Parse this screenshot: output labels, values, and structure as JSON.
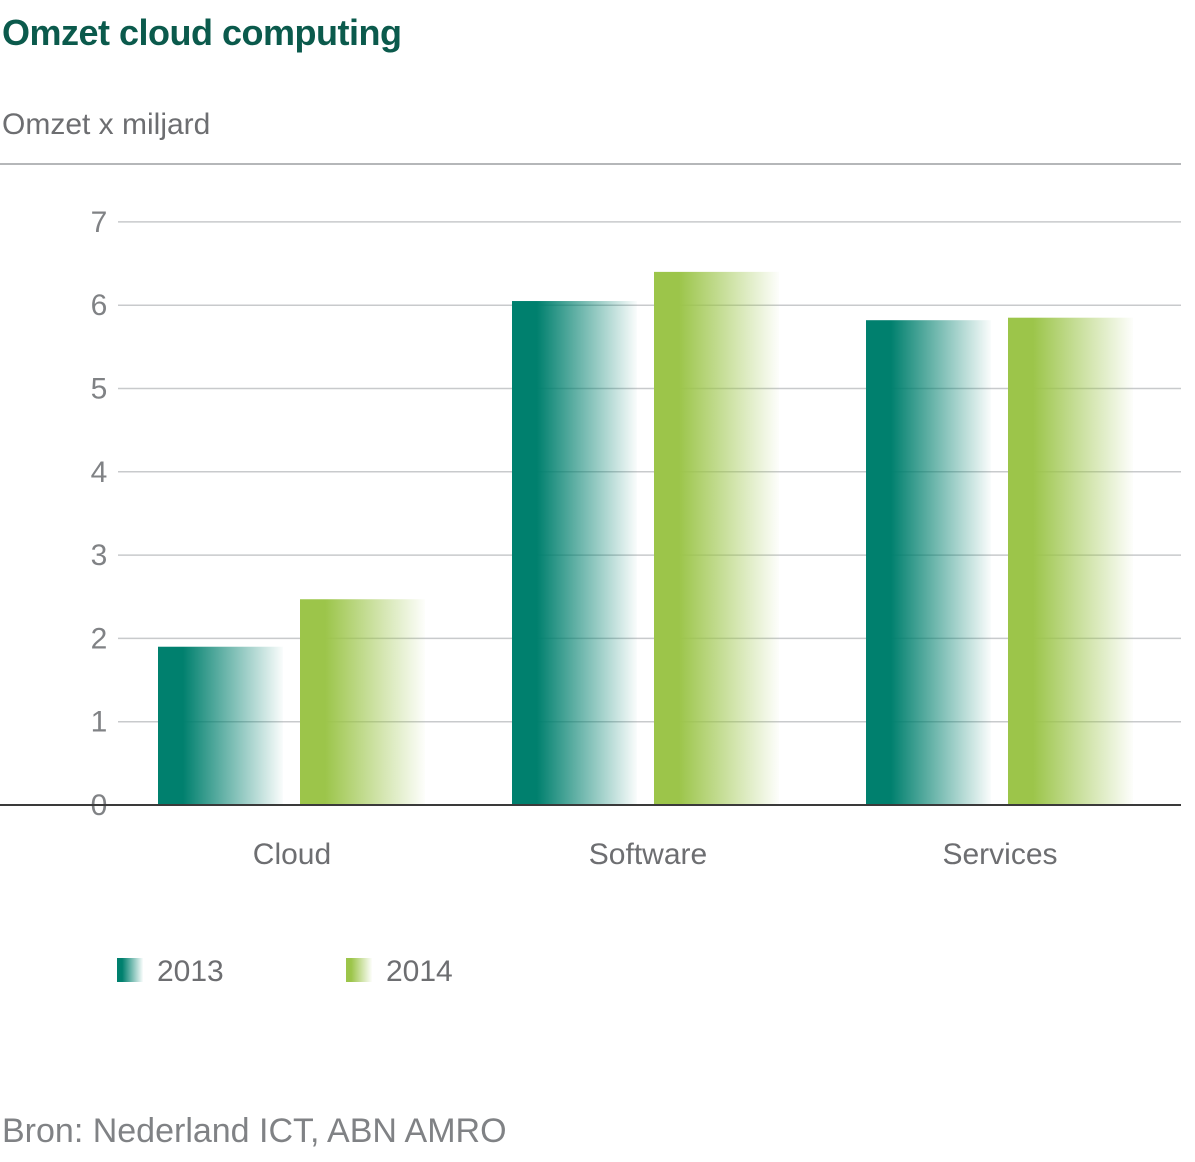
{
  "title": "Omzet cloud computing",
  "unit_label": "Omzet x miljard",
  "source": "Bron: Nederland ICT, ABN AMRO",
  "colors": {
    "series_2013": "#00806e",
    "series_2014": "#9cc54a",
    "title": "#0b5a4c",
    "grid": "#c8cacc"
  },
  "chart_data": {
    "type": "bar",
    "categories": [
      "Cloud",
      "Software",
      "Services"
    ],
    "series": [
      {
        "name": "2013",
        "values": [
          1.9,
          6.05,
          5.82
        ]
      },
      {
        "name": "2014",
        "values": [
          2.47,
          6.4,
          5.85
        ]
      }
    ],
    "ylim": [
      0,
      7
    ],
    "yticks": [
      "0",
      "1",
      "2",
      "3",
      "4",
      "5",
      "6",
      "7"
    ],
    "grid": true,
    "legend": "bottom-left"
  }
}
